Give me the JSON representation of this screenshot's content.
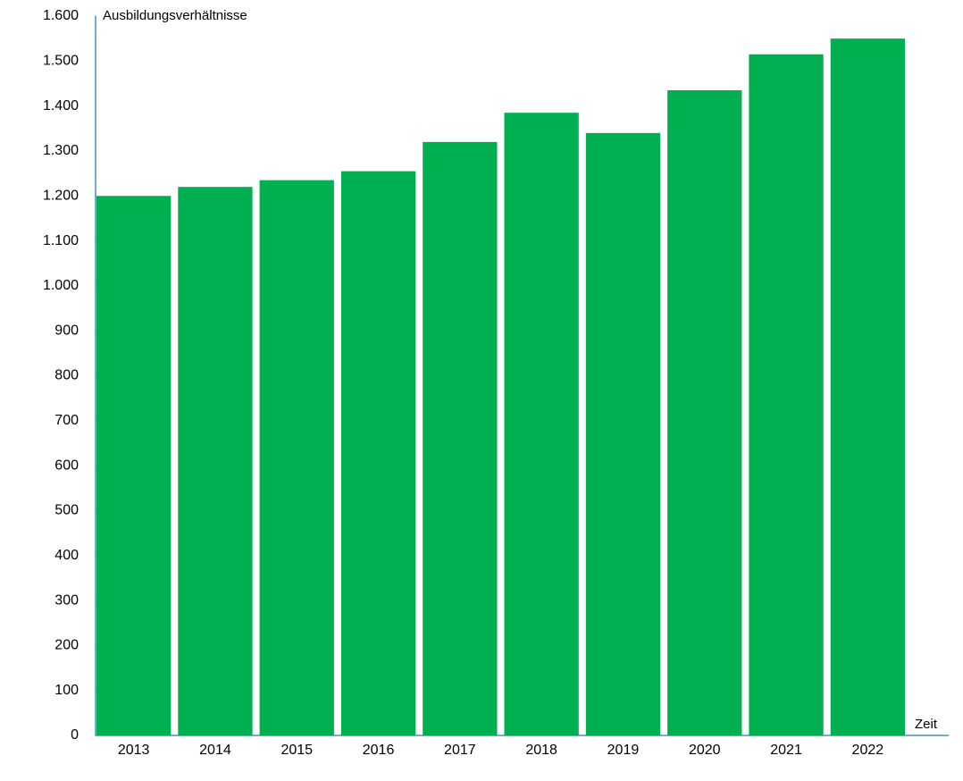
{
  "chart_data": {
    "type": "bar",
    "y_label": "Ausbildungsverhältnisse",
    "x_label": "Zeit",
    "categories": [
      "2013",
      "2014",
      "2015",
      "2016",
      "2017",
      "2018",
      "2019",
      "2020",
      "2021",
      "2022"
    ],
    "values": [
      1200,
      1220,
      1235,
      1255,
      1320,
      1385,
      1340,
      1435,
      1515,
      1550
    ],
    "color": "#00b050",
    "ylim": [
      0,
      1600
    ],
    "yticks": [
      0,
      100,
      200,
      300,
      400,
      500,
      600,
      700,
      800,
      900,
      {
        "value": 1000,
        "label": "1.000"
      },
      {
        "value": 1100,
        "label": "1.100"
      },
      {
        "value": 1200,
        "label": "1.200"
      },
      {
        "value": 1300,
        "label": "1.300"
      },
      {
        "value": 1400,
        "label": "1.400"
      },
      {
        "value": 1500,
        "label": "1.500"
      },
      {
        "value": 1600,
        "label": "1.600"
      }
    ],
    "grid": false
  }
}
